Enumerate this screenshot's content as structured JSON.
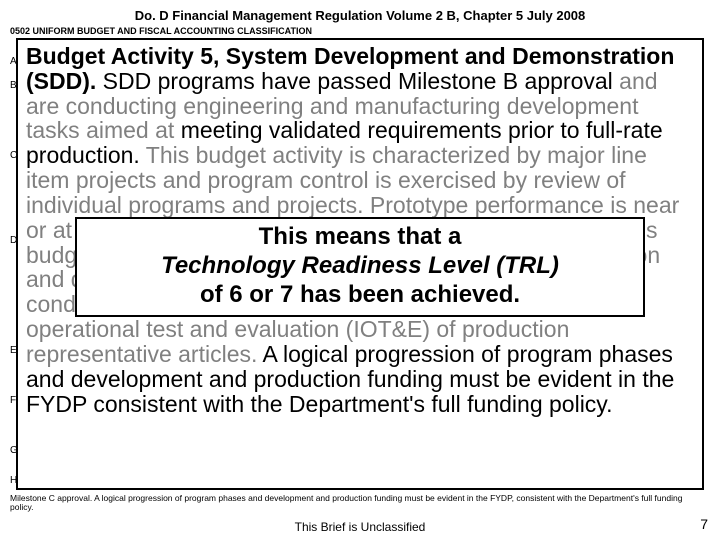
{
  "header": "Do. D Financial Management Regulation Volume 2 B, Chapter 5  July 2008",
  "subheader": "0502 UNIFORM BUDGET AND FISCAL ACCOUNTING CLASSIFICATION",
  "letters": {
    "a": "A",
    "b": "B",
    "c": "C",
    "d": "D",
    "e": "E",
    "f": "F",
    "g": "G",
    "h": "H"
  },
  "mainHtml": "<span class='black bold'>Budget Activity 5, System Development and Demonstration (SDD).</span> <span class='black'>SDD programs have passed Milestone B approval</span> and are conducting engineering and manufacturing development tasks aimed at <span class='black'>meeting validated requirements prior to full-rate production.</span> This budget activity is characterized by major line item projects and program control is exercised by review of individual programs and projects. Prototype performance is near or at planned operational system levels. Characteristics of this budget activity involve mature system development integration and demonstration to support Milestone C decisions and conducting live fire test and evaluation (LFT&amp;E) and initial operational test and evaluation (IOT&amp;E) of production representative articles. <span class='black'>A logical progression of program phases and development and production funding must be evident in the FYDP consistent with the Department's full funding policy.</span>",
  "innerLine1": "This means that a",
  "innerLine2": "Technology Readiness Level (TRL)",
  "innerLine3": "of 6 or 7 has been achieved.",
  "footnote": "Milestone C approval. A logical progression of program phases and development and production funding must be evident in the FYDP, consistent with the Department's full funding policy.",
  "footerCenter": "This Brief is Unclassified",
  "pageNum": "7"
}
